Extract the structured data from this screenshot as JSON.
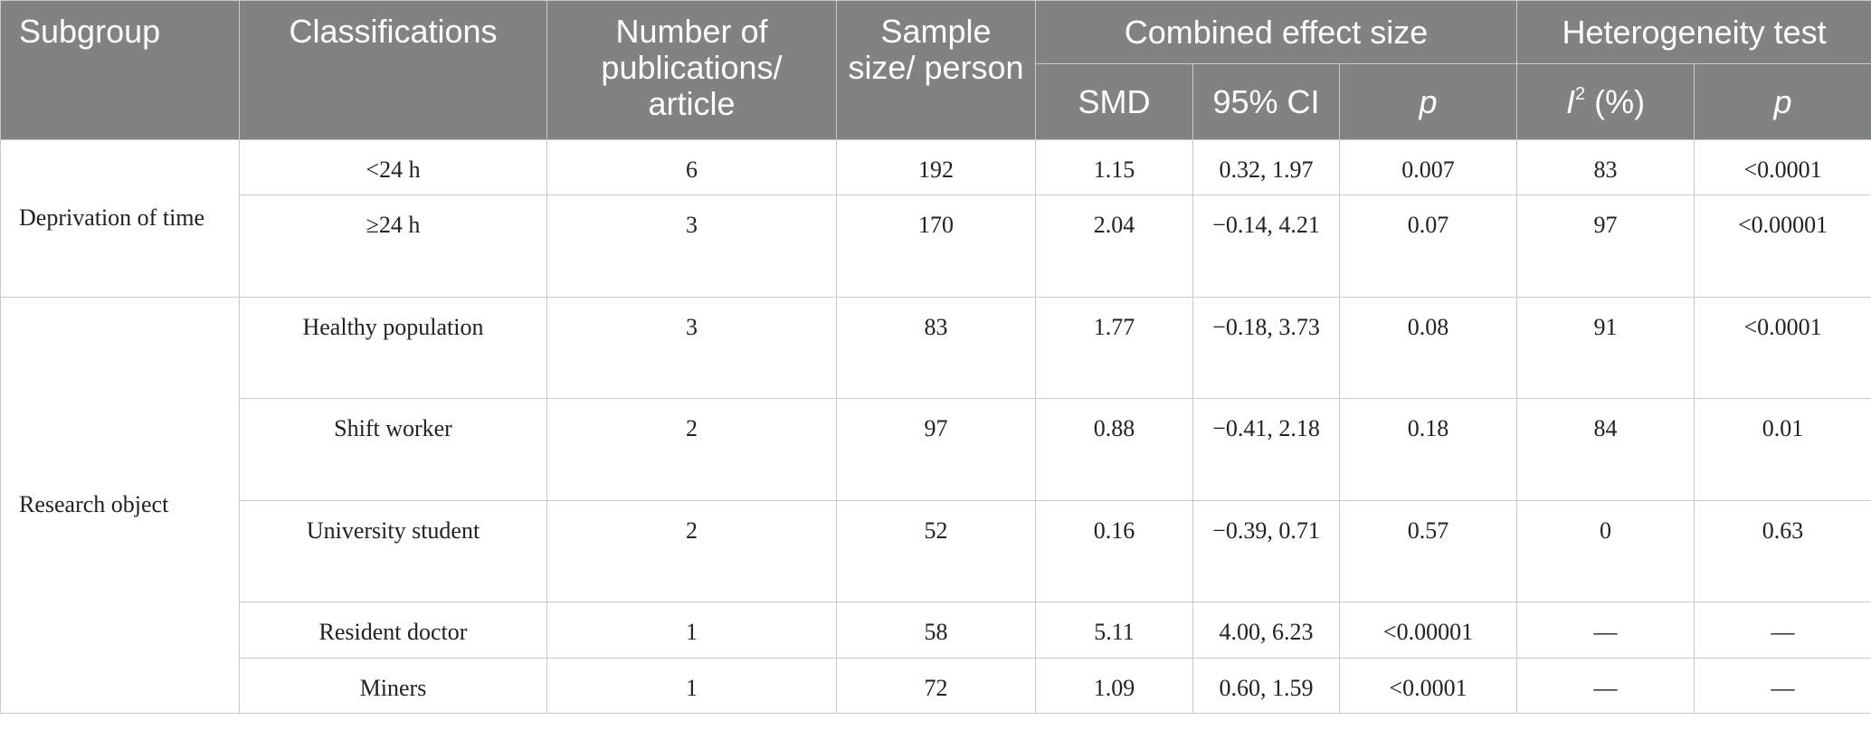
{
  "header": {
    "subgroup": "Subgroup",
    "classifications": "Classifications",
    "publications": "Number of publications/ article",
    "sample_size": "Sample size/ person",
    "combined_effect": "Combined effect size",
    "smd": "SMD",
    "ci": "95% CI",
    "p1": "p",
    "heterogeneity": "Heterogeneity test",
    "i2_letter": "I",
    "i2_sup": "2",
    "i2_unit": " (%)",
    "p2": "p"
  },
  "groups": [
    {
      "name": "Deprivation of time",
      "rows": [
        {
          "classification": "<24 h",
          "publications": "6",
          "sample": "192",
          "smd": "1.15",
          "ci": "0.32, 1.97",
          "p": "0.007",
          "i2": "83",
          "p_het": "<0.0001"
        },
        {
          "classification": "≥24 h",
          "publications": "3",
          "sample": "170",
          "smd": "2.04",
          "ci": "−0.14, 4.21",
          "p": "0.07",
          "i2": "97",
          "p_het": "<0.00001"
        }
      ]
    },
    {
      "name": "Research object",
      "rows": [
        {
          "classification": "Healthy population",
          "publications": "3",
          "sample": "83",
          "smd": "1.77",
          "ci": "−0.18, 3.73",
          "p": "0.08",
          "i2": "91",
          "p_het": "<0.0001"
        },
        {
          "classification": "Shift worker",
          "publications": "2",
          "sample": "97",
          "smd": "0.88",
          "ci": "−0.41, 2.18",
          "p": "0.18",
          "i2": "84",
          "p_het": "0.01"
        },
        {
          "classification": "University student",
          "publications": "2",
          "sample": "52",
          "smd": "0.16",
          "ci": "−0.39, 0.71",
          "p": "0.57",
          "i2": "0",
          "p_het": "0.63"
        },
        {
          "classification": "Resident doctor",
          "publications": "1",
          "sample": "58",
          "smd": "5.11",
          "ci": "4.00, 6.23",
          "p": "<0.00001",
          "i2": "—",
          "p_het": "—"
        },
        {
          "classification": "Miners",
          "publications": "1",
          "sample": "72",
          "smd": "1.09",
          "ci": "0.60, 1.59",
          "p": "<0.0001",
          "i2": "—",
          "p_het": "—"
        }
      ]
    }
  ]
}
